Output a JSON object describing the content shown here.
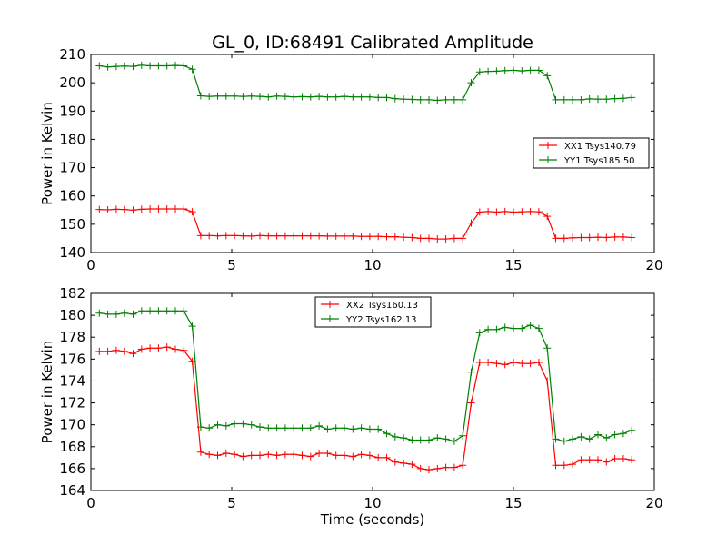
{
  "figure": {
    "title": "GL_0, ID:68491 Calibrated Amplitude",
    "xlabel": "Time (seconds)"
  },
  "chart_data": [
    {
      "type": "line",
      "title": "GL_0, ID:68491 Calibrated Amplitude",
      "xlabel": "",
      "ylabel": "Power in Kelvin",
      "xlim": [
        0,
        20
      ],
      "ylim": [
        140,
        210
      ],
      "xticks": [
        0,
        5,
        10,
        15,
        20
      ],
      "yticks": [
        140,
        150,
        160,
        170,
        180,
        190,
        200,
        210
      ],
      "grid": false,
      "legend_position": "center-right",
      "x": [
        0.3,
        0.6,
        0.9,
        1.2,
        1.5,
        1.8,
        2.1,
        2.4,
        2.7,
        3.0,
        3.3,
        3.6,
        3.9,
        4.2,
        4.5,
        4.8,
        5.1,
        5.4,
        5.7,
        6.0,
        6.3,
        6.6,
        6.9,
        7.2,
        7.5,
        7.8,
        8.1,
        8.4,
        8.7,
        9.0,
        9.3,
        9.6,
        9.9,
        10.2,
        10.5,
        10.8,
        11.1,
        11.4,
        11.7,
        12.0,
        12.3,
        12.6,
        12.9,
        13.2,
        13.5,
        13.8,
        14.1,
        14.4,
        14.7,
        15.0,
        15.3,
        15.6,
        15.9,
        16.2,
        16.5,
        16.8,
        17.1,
        17.4,
        17.7,
        18.0,
        18.3,
        18.6,
        18.9,
        19.2
      ],
      "series": [
        {
          "name": "XX1 Tsys140.79",
          "color": "#ff0000",
          "values": [
            155.2,
            155.1,
            155.3,
            155.2,
            155.0,
            155.3,
            155.4,
            155.4,
            155.4,
            155.4,
            155.4,
            154.4,
            146.0,
            146.0,
            145.9,
            146.0,
            146.0,
            145.9,
            145.8,
            146.0,
            145.9,
            145.9,
            145.9,
            145.9,
            145.9,
            145.9,
            145.9,
            145.8,
            145.8,
            145.8,
            145.8,
            145.7,
            145.7,
            145.7,
            145.6,
            145.6,
            145.4,
            145.3,
            145.0,
            145.0,
            144.8,
            144.8,
            145.0,
            145.0,
            150.4,
            154.3,
            154.5,
            154.3,
            154.5,
            154.3,
            154.4,
            154.5,
            154.4,
            152.8,
            145.0,
            145.0,
            145.2,
            145.3,
            145.3,
            145.4,
            145.3,
            145.5,
            145.5,
            145.3
          ]
        },
        {
          "name": "YY1 Tsys185.50",
          "color": "#008000",
          "values": [
            206.0,
            205.6,
            205.8,
            205.9,
            205.8,
            206.2,
            206.0,
            206.0,
            206.0,
            206.1,
            206.0,
            204.8,
            195.4,
            195.2,
            195.3,
            195.3,
            195.3,
            195.2,
            195.3,
            195.2,
            195.0,
            195.3,
            195.2,
            195.0,
            195.1,
            195.0,
            195.2,
            195.0,
            195.0,
            195.2,
            195.0,
            195.0,
            195.0,
            194.8,
            194.8,
            194.4,
            194.2,
            194.1,
            194.0,
            194.0,
            193.8,
            194.0,
            194.0,
            194.0,
            200.0,
            203.8,
            204.0,
            204.1,
            204.3,
            204.4,
            204.2,
            204.4,
            204.4,
            202.5,
            194.0,
            194.0,
            194.0,
            194.0,
            194.3,
            194.2,
            194.2,
            194.4,
            194.5,
            194.8
          ]
        }
      ]
    },
    {
      "type": "line",
      "title": "",
      "xlabel": "Time (seconds)",
      "ylabel": "Power in Kelvin",
      "xlim": [
        0,
        20
      ],
      "ylim": [
        164,
        182
      ],
      "xticks": [
        0,
        5,
        10,
        15,
        20
      ],
      "yticks": [
        164,
        166,
        168,
        170,
        172,
        174,
        176,
        178,
        180,
        182
      ],
      "grid": false,
      "legend_position": "top-center",
      "x": [
        0.3,
        0.6,
        0.9,
        1.2,
        1.5,
        1.8,
        2.1,
        2.4,
        2.7,
        3.0,
        3.3,
        3.6,
        3.9,
        4.2,
        4.5,
        4.8,
        5.1,
        5.4,
        5.7,
        6.0,
        6.3,
        6.6,
        6.9,
        7.2,
        7.5,
        7.8,
        8.1,
        8.4,
        8.7,
        9.0,
        9.3,
        9.6,
        9.9,
        10.2,
        10.5,
        10.8,
        11.1,
        11.4,
        11.7,
        12.0,
        12.3,
        12.6,
        12.9,
        13.2,
        13.5,
        13.8,
        14.1,
        14.4,
        14.7,
        15.0,
        15.3,
        15.6,
        15.9,
        16.2,
        16.5,
        16.8,
        17.1,
        17.4,
        17.7,
        18.0,
        18.3,
        18.6,
        18.9,
        19.2
      ],
      "series": [
        {
          "name": "XX2 Tsys160.13",
          "color": "#ff0000",
          "values": [
            176.7,
            176.7,
            176.8,
            176.7,
            176.5,
            176.9,
            177.0,
            177.0,
            177.1,
            176.9,
            176.8,
            175.8,
            167.5,
            167.3,
            167.2,
            167.4,
            167.3,
            167.1,
            167.2,
            167.2,
            167.3,
            167.2,
            167.3,
            167.3,
            167.2,
            167.1,
            167.4,
            167.4,
            167.2,
            167.2,
            167.1,
            167.3,
            167.2,
            167.0,
            167.0,
            166.6,
            166.5,
            166.4,
            166.0,
            165.9,
            166.0,
            166.1,
            166.1,
            166.3,
            172.0,
            175.7,
            175.7,
            175.6,
            175.5,
            175.7,
            175.6,
            175.6,
            175.7,
            174.0,
            166.3,
            166.3,
            166.4,
            166.8,
            166.8,
            166.8,
            166.6,
            166.9,
            166.9,
            166.8
          ]
        },
        {
          "name": "YY2 Tsys162.13",
          "color": "#008000",
          "values": [
            180.2,
            180.1,
            180.1,
            180.2,
            180.1,
            180.4,
            180.4,
            180.4,
            180.4,
            180.4,
            180.4,
            179.0,
            169.8,
            169.7,
            170.0,
            169.9,
            170.1,
            170.1,
            170.0,
            169.8,
            169.7,
            169.7,
            169.7,
            169.7,
            169.7,
            169.7,
            169.9,
            169.6,
            169.7,
            169.7,
            169.6,
            169.7,
            169.6,
            169.6,
            169.2,
            168.9,
            168.8,
            168.6,
            168.6,
            168.6,
            168.8,
            168.7,
            168.5,
            169.0,
            174.8,
            178.4,
            178.7,
            178.7,
            178.9,
            178.8,
            178.8,
            179.1,
            178.8,
            177.0,
            168.7,
            168.5,
            168.7,
            168.9,
            168.7,
            169.1,
            168.8,
            169.1,
            169.2,
            169.5
          ]
        }
      ]
    }
  ]
}
